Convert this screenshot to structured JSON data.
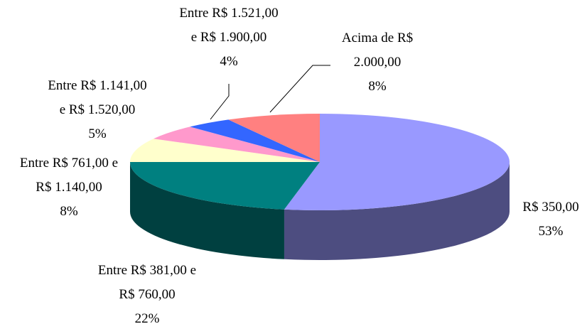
{
  "chart_data": {
    "type": "pie",
    "categories": [
      "R$ 350,00",
      "Entre R$ 381,00 e\nR$ 760,00",
      "Entre R$ 761,00 e\nR$ 1.140,00",
      "Entre R$ 1.141,00\ne R$ 1.520,00",
      "Entre R$ 1.521,00\ne R$ 1.900,00",
      "Acima de R$\n2.000,00"
    ],
    "values": [
      53,
      22,
      8,
      5,
      4,
      8
    ],
    "value_labels": [
      "53%",
      "22%",
      "8%",
      "5%",
      "4%",
      "8%"
    ],
    "colors": [
      "#9999ff",
      "#008080",
      "#ffffcc",
      "#ff99cc",
      "#3366ff",
      "#ff8080"
    ]
  }
}
